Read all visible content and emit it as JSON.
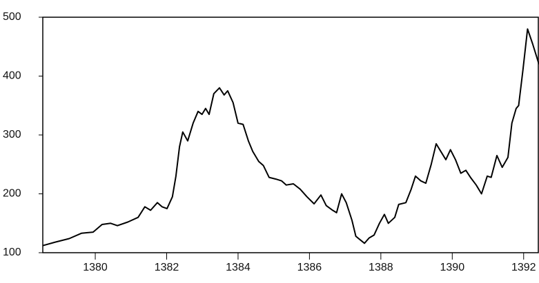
{
  "chart_data": {
    "type": "line",
    "x": [
      1378.53,
      1378.88,
      1379.27,
      1379.61,
      1379.94,
      1380.19,
      1380.43,
      1380.62,
      1380.91,
      1381.2,
      1381.39,
      1381.55,
      1381.74,
      1381.87,
      1382.01,
      1382.16,
      1382.26,
      1382.36,
      1382.45,
      1382.59,
      1382.74,
      1382.88,
      1382.99,
      1383.09,
      1383.19,
      1383.32,
      1383.48,
      1383.61,
      1383.71,
      1383.86,
      1384.0,
      1384.14,
      1384.29,
      1384.41,
      1384.58,
      1384.71,
      1384.87,
      1385.06,
      1385.22,
      1385.35,
      1385.55,
      1385.74,
      1385.93,
      1386.13,
      1386.32,
      1386.47,
      1386.65,
      1386.76,
      1386.9,
      1387.03,
      1387.19,
      1387.3,
      1387.42,
      1387.54,
      1387.67,
      1387.81,
      1387.96,
      1388.1,
      1388.21,
      1388.39,
      1388.5,
      1388.7,
      1388.85,
      1388.97,
      1389.12,
      1389.26,
      1389.41,
      1389.55,
      1389.7,
      1389.82,
      1389.95,
      1390.09,
      1390.24,
      1390.38,
      1390.51,
      1390.67,
      1390.82,
      1390.98,
      1391.09,
      1391.25,
      1391.4,
      1391.56,
      1391.67,
      1391.79,
      1391.86,
      1391.98,
      1392.11,
      1392.25,
      1392.43
    ],
    "values": [
      112,
      118,
      124,
      133,
      135,
      148,
      150,
      146,
      152,
      160,
      178,
      172,
      185,
      178,
      175,
      195,
      230,
      280,
      305,
      290,
      320,
      340,
      335,
      345,
      335,
      370,
      380,
      368,
      375,
      355,
      320,
      318,
      290,
      272,
      255,
      248,
      228,
      225,
      222,
      215,
      217,
      208,
      195,
      183,
      198,
      180,
      172,
      168,
      200,
      185,
      155,
      128,
      122,
      116,
      125,
      130,
      150,
      165,
      150,
      160,
      182,
      185,
      208,
      230,
      222,
      218,
      250,
      285,
      270,
      258,
      275,
      258,
      235,
      240,
      228,
      215,
      200,
      230,
      228,
      265,
      245,
      262,
      320,
      345,
      350,
      410,
      480,
      455,
      420
    ],
    "color": "#000000",
    "xlim": [
      1378.53,
      1392.43
    ],
    "xticks": [
      1380,
      1382,
      1384,
      1386,
      1388,
      1390,
      1392
    ],
    "ylim": [
      100,
      500
    ],
    "yticks": [
      100,
      200,
      300,
      400,
      500
    ]
  }
}
